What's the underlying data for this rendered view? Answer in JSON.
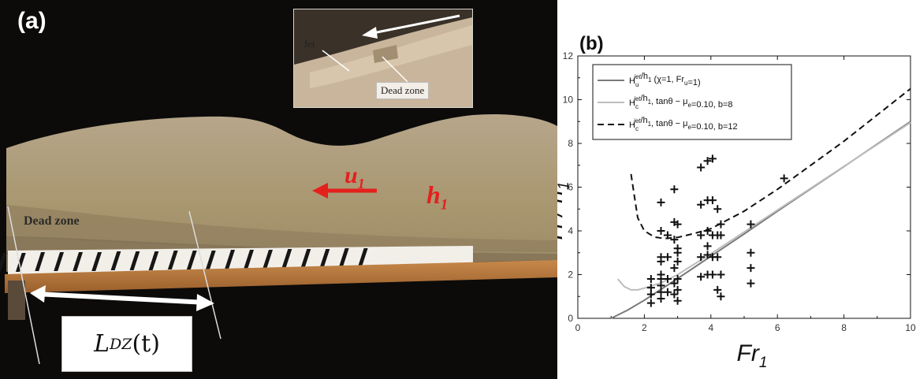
{
  "panel_a": {
    "label": "(a)",
    "inset": {
      "jet_label": "Jet",
      "dead_zone_label": "Dead zone"
    },
    "velocity_label": {
      "main": "u",
      "sub": "1"
    },
    "depth_label": {
      "main": "h",
      "sub": "1"
    },
    "dead_zone_label": "Dead zone",
    "ldz_label": {
      "main": "L",
      "sub": "DZ",
      "suffix": "(t)"
    }
  },
  "panel_b": {
    "label": "(b)"
  },
  "colors": {
    "red_label": "#e4201d",
    "curve_dark": "#7a7a7a",
    "curve_light": "#bdbdbd",
    "curve_dashed": "#111111"
  },
  "chart_data": {
    "type": "line",
    "title": "",
    "xlabel": "Fr",
    "xlabel_sub": "1",
    "ylabel": "H / h",
    "ylabel_sub": "1",
    "xlim": [
      0,
      10
    ],
    "ylim": [
      0,
      12
    ],
    "xticks": [
      0,
      2,
      4,
      6,
      8,
      10
    ],
    "yticks": [
      0,
      2,
      4,
      6,
      8,
      10,
      12
    ],
    "legend_position": "top-left",
    "series": [
      {
        "legend": {
          "a": "H",
          "sub": "u",
          "sup": "jet",
          "b": "/h",
          "sub2": "1",
          "c": " (χ=1, Fr",
          "sub3": "u",
          "d": "=1)"
        },
        "style": "solid-dark",
        "x": [
          1,
          1.5,
          2,
          3,
          4,
          5,
          6,
          7,
          8,
          9,
          10
        ],
        "y": [
          0,
          0.38,
          0.83,
          1.82,
          2.84,
          3.86,
          4.9,
          5.92,
          6.94,
          7.97,
          9.0
        ]
      },
      {
        "legend": {
          "a": "H",
          "sub": "c",
          "sup": "jet",
          "b": "/h",
          "sub2": "1",
          "c": ", tanθ − μ",
          "sub3": "e",
          "d": "=0.10, b=8"
        },
        "style": "solid-light",
        "x": [
          1.2,
          1.4,
          1.6,
          1.8,
          2.0,
          2.5,
          3.0,
          4,
          5,
          6,
          7,
          8,
          9,
          10
        ],
        "y": [
          1.8,
          1.45,
          1.3,
          1.3,
          1.38,
          1.62,
          2.0,
          2.95,
          3.95,
          4.95,
          5.95,
          6.95,
          7.95,
          8.95
        ]
      },
      {
        "legend": {
          "a": "H",
          "sub": "c",
          "sup": "jet",
          "b": "/h",
          "sub2": "1",
          "c": ", tanθ − μ",
          "sub3": "e",
          "d": "=0.10, b=12"
        },
        "style": "dashed",
        "x": [
          1.6,
          1.7,
          1.8,
          2.0,
          2.3,
          2.6,
          3.0,
          3.5,
          4,
          5,
          6,
          7,
          8,
          9,
          10
        ],
        "y": [
          6.6,
          5.6,
          4.6,
          4.0,
          3.72,
          3.65,
          3.7,
          3.88,
          4.1,
          4.9,
          5.9,
          7.0,
          8.1,
          9.3,
          10.5
        ]
      },
      {
        "name": "measurements",
        "style": "plus-markers",
        "points": [
          [
            2.2,
            1.8
          ],
          [
            2.2,
            1.4
          ],
          [
            2.2,
            1.1
          ],
          [
            2.2,
            0.7
          ],
          [
            2.5,
            5.3
          ],
          [
            2.5,
            4.0
          ],
          [
            2.5,
            2.8
          ],
          [
            2.5,
            2.6
          ],
          [
            2.5,
            2.0
          ],
          [
            2.5,
            1.8
          ],
          [
            2.5,
            1.5
          ],
          [
            2.5,
            1.2
          ],
          [
            2.5,
            0.9
          ],
          [
            2.7,
            3.8
          ],
          [
            2.7,
            2.8
          ],
          [
            2.7,
            1.8
          ],
          [
            2.7,
            1.2
          ],
          [
            2.9,
            5.9
          ],
          [
            2.9,
            4.4
          ],
          [
            2.9,
            3.6
          ],
          [
            2.9,
            2.3
          ],
          [
            2.9,
            1.6
          ],
          [
            2.9,
            1.1
          ],
          [
            3.0,
            4.3
          ],
          [
            3.0,
            3.2
          ],
          [
            3.0,
            3.0
          ],
          [
            3.0,
            2.6
          ],
          [
            3.0,
            1.8
          ],
          [
            3.0,
            1.3
          ],
          [
            3.0,
            0.8
          ],
          [
            3.7,
            6.9
          ],
          [
            3.7,
            5.2
          ],
          [
            3.7,
            3.8
          ],
          [
            3.7,
            2.8
          ],
          [
            3.7,
            1.9
          ],
          [
            3.9,
            7.2
          ],
          [
            3.9,
            5.4
          ],
          [
            3.9,
            4.0
          ],
          [
            3.9,
            3.3
          ],
          [
            3.9,
            2.9
          ],
          [
            3.9,
            2.0
          ],
          [
            4.05,
            7.3
          ],
          [
            4.05,
            5.4
          ],
          [
            4.05,
            3.8
          ],
          [
            4.05,
            2.8
          ],
          [
            4.05,
            2.0
          ],
          [
            4.2,
            5.0
          ],
          [
            4.2,
            3.8
          ],
          [
            4.2,
            2.8
          ],
          [
            4.2,
            1.3
          ],
          [
            4.3,
            4.3
          ],
          [
            4.3,
            3.8
          ],
          [
            4.3,
            2.0
          ],
          [
            4.3,
            1.0
          ],
          [
            5.2,
            4.3
          ],
          [
            5.2,
            3.0
          ],
          [
            5.2,
            2.3
          ],
          [
            5.2,
            1.6
          ],
          [
            6.2,
            6.4
          ]
        ]
      }
    ]
  }
}
